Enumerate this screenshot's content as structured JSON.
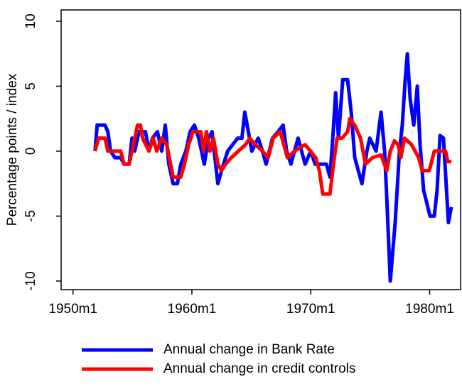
{
  "chart_data": {
    "type": "line",
    "ylabel": "Percentage points / index",
    "xlim": [
      1949,
      1982.6
    ],
    "ylim": [
      -10.66,
      10.87
    ],
    "xticks": [
      {
        "value": 1950,
        "label": "1950m1"
      },
      {
        "value": 1960,
        "label": "1960m1"
      },
      {
        "value": 1970,
        "label": "1970m1"
      },
      {
        "value": 1980,
        "label": "1980m1"
      }
    ],
    "yticks": [
      -10,
      -5,
      0,
      5,
      10
    ],
    "series": [
      {
        "name": "Annual change in Bank Rate",
        "color": "#0000ff",
        "x": [
          1951.85,
          1952.03,
          1952.69,
          1952.93,
          1953.16,
          1953.52,
          1954.0,
          1954.3,
          1954.72,
          1954.96,
          1955.19,
          1955.55,
          1956.09,
          1956.39,
          1956.69,
          1957.1,
          1957.46,
          1957.76,
          1958.06,
          1958.42,
          1958.78,
          1959.07,
          1959.49,
          1959.85,
          1960.21,
          1960.57,
          1960.81,
          1961.04,
          1961.4,
          1961.7,
          1961.94,
          1962.18,
          1962.66,
          1963.01,
          1963.85,
          1964.21,
          1964.45,
          1964.75,
          1965.04,
          1965.58,
          1965.94,
          1966.24,
          1966.78,
          1967.25,
          1967.67,
          1967.97,
          1968.33,
          1968.93,
          1969.52,
          1970.0,
          1970.36,
          1971.31,
          1971.61,
          1971.85,
          1972.09,
          1972.33,
          1972.69,
          1973.1,
          1973.4,
          1973.7,
          1974.3,
          1974.72,
          1974.96,
          1975.49,
          1975.91,
          1976.21,
          1976.39,
          1976.69,
          1977.1,
          1977.46,
          1977.7,
          1977.94,
          1978.12,
          1978.36,
          1978.66,
          1978.96,
          1979.19,
          1979.49,
          1980.03,
          1980.39,
          1980.63,
          1980.87,
          1981.16,
          1981.58,
          1981.82
        ],
        "values": [
          0,
          2,
          2,
          1.5,
          0,
          -0.5,
          -0.5,
          -1,
          -1,
          1,
          0,
          1.5,
          1.5,
          0,
          1,
          1.5,
          0,
          2,
          -1,
          -2.5,
          -2.5,
          -1,
          0,
          1.5,
          2,
          1,
          0,
          -1,
          1,
          1.5,
          -0.5,
          -2.5,
          -1,
          0,
          1,
          1,
          3,
          1.5,
          0,
          1,
          0,
          -1,
          1,
          1.5,
          2,
          0,
          -1,
          1,
          -1,
          0,
          -1,
          -1,
          -2,
          1,
          4.5,
          1,
          5.5,
          5.5,
          3,
          -0.5,
          -2.5,
          0,
          1,
          0,
          3,
          0,
          -3.5,
          -10,
          -5.5,
          0,
          2,
          5.5,
          7.5,
          4,
          2,
          5,
          0.5,
          -3,
          -5,
          -5,
          -3,
          1.2,
          1,
          -5.5,
          -4.3
        ]
      },
      {
        "name": "Annual change in credit controls",
        "color": "#ff0000",
        "x": [
          1951.85,
          1952.15,
          1952.69,
          1952.93,
          1954.0,
          1954.3,
          1954.72,
          1954.96,
          1955.43,
          1955.67,
          1955.85,
          1956.39,
          1956.75,
          1957.04,
          1957.46,
          1957.88,
          1958.42,
          1959.07,
          1959.37,
          1959.73,
          1960.09,
          1960.75,
          1960.99,
          1961.22,
          1961.52,
          1961.82,
          1962.18,
          1962.48,
          1962.84,
          1963.31,
          1963.91,
          1964.51,
          1964.87,
          1965.34,
          1965.94,
          1966.42,
          1966.84,
          1967.43,
          1967.73,
          1968.03,
          1968.63,
          1969.52,
          1970.42,
          1970.72,
          1971.01,
          1971.61,
          1971.91,
          1972.21,
          1972.63,
          1973.1,
          1973.28,
          1973.7,
          1974.18,
          1974.6,
          1975.19,
          1975.91,
          1976.39,
          1976.69,
          1977.04,
          1977.34,
          1977.58,
          1977.88,
          1978.48,
          1979.07,
          1979.37,
          1979.97,
          1980.39,
          1981.34,
          1981.52,
          1981.82
        ],
        "values": [
          0,
          1,
          1,
          0,
          0,
          -1,
          -1,
          0,
          2,
          2,
          1,
          0,
          1,
          0,
          1,
          0.5,
          -2,
          -2,
          -1,
          0.5,
          1.5,
          1.5,
          0,
          1.5,
          0,
          1,
          -1,
          -1.5,
          -1,
          -0.5,
          0,
          0.5,
          1,
          0.5,
          0,
          -0.5,
          1,
          1.5,
          0.5,
          -0.5,
          0,
          0.5,
          -0.5,
          -1.5,
          -3.3,
          -3.3,
          -1,
          1,
          1,
          1.5,
          2.5,
          2,
          1,
          -1,
          -0.5,
          -0.3,
          -1.5,
          0,
          0.8,
          0.5,
          -0.5,
          1,
          0.5,
          -0.5,
          -1.5,
          -1.5,
          0,
          0,
          -0.8,
          -0.8
        ]
      }
    ]
  }
}
